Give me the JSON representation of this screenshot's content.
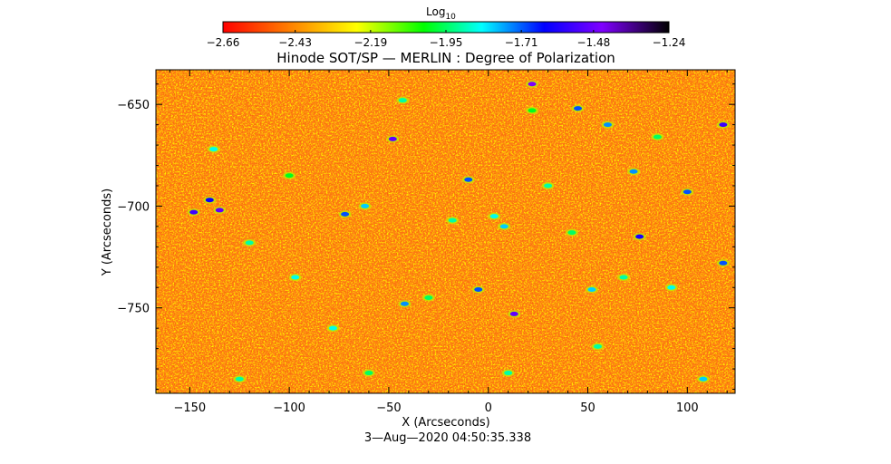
{
  "chart_data": {
    "type": "heatmap",
    "title": "Hinode SOT/SP — MERLIN : Degree of Polarization",
    "xlabel": "X (Arcseconds)",
    "ylabel": "Y (Arcseconds)",
    "timestamp": "3—Aug—2020 04:50:35.338",
    "xlim": [
      -167,
      124
    ],
    "ylim": [
      -792,
      -633
    ],
    "x_ticks": [
      -150,
      -100,
      -50,
      0,
      50,
      100
    ],
    "x_tick_labels": [
      "−150",
      "−100",
      "−50",
      "0",
      "50",
      "100"
    ],
    "y_ticks": [
      -650,
      -700,
      -750
    ],
    "y_tick_labels": [
      "−650",
      "−700",
      "−750"
    ],
    "colorbar": {
      "label_base": "Log",
      "label_sub": "10",
      "min": -2.66,
      "max": -1.24,
      "ticks": [
        -2.66,
        -2.43,
        -2.19,
        -1.95,
        -1.71,
        -1.48,
        -1.24
      ],
      "tick_labels": [
        "−2.66",
        "−2.43",
        "−2.19",
        "−1.95",
        "−1.71",
        "−1.48",
        "−1.24"
      ],
      "colormap": [
        "#ff0000",
        "#ff8000",
        "#ffff00",
        "#00ff00",
        "#00ffff",
        "#0000ff",
        "#7f00ff",
        "#000000"
      ]
    },
    "background_color": "#ff7a1a",
    "features": [
      {
        "x": -148,
        "y": -703,
        "v": -1.55
      },
      {
        "x": -140,
        "y": -697,
        "v": -1.62
      },
      {
        "x": -135,
        "y": -702,
        "v": -1.5
      },
      {
        "x": -138,
        "y": -672,
        "v": -1.85
      },
      {
        "x": -120,
        "y": -718,
        "v": -1.9
      },
      {
        "x": -100,
        "y": -685,
        "v": -2.0
      },
      {
        "x": -97,
        "y": -735,
        "v": -1.85
      },
      {
        "x": -72,
        "y": -704,
        "v": -1.7
      },
      {
        "x": -62,
        "y": -700,
        "v": -1.8
      },
      {
        "x": -48,
        "y": -667,
        "v": -1.5
      },
      {
        "x": -43,
        "y": -648,
        "v": -1.9
      },
      {
        "x": -42,
        "y": -748,
        "v": -1.75
      },
      {
        "x": -30,
        "y": -745,
        "v": -1.95
      },
      {
        "x": -18,
        "y": -707,
        "v": -1.9
      },
      {
        "x": -10,
        "y": -687,
        "v": -1.7
      },
      {
        "x": -5,
        "y": -741,
        "v": -1.7
      },
      {
        "x": 3,
        "y": -705,
        "v": -1.85
      },
      {
        "x": 8,
        "y": -710,
        "v": -1.8
      },
      {
        "x": 13,
        "y": -753,
        "v": -1.5
      },
      {
        "x": 22,
        "y": -653,
        "v": -2.0
      },
      {
        "x": 22,
        "y": -640,
        "v": -1.45
      },
      {
        "x": 30,
        "y": -690,
        "v": -1.9
      },
      {
        "x": 42,
        "y": -713,
        "v": -1.95
      },
      {
        "x": 45,
        "y": -652,
        "v": -1.7
      },
      {
        "x": 52,
        "y": -741,
        "v": -1.8
      },
      {
        "x": 55,
        "y": -769,
        "v": -1.9
      },
      {
        "x": 60,
        "y": -660,
        "v": -1.75
      },
      {
        "x": 68,
        "y": -735,
        "v": -1.9
      },
      {
        "x": 73,
        "y": -683,
        "v": -1.75
      },
      {
        "x": 76,
        "y": -715,
        "v": -1.6
      },
      {
        "x": 85,
        "y": -666,
        "v": -1.95
      },
      {
        "x": 92,
        "y": -740,
        "v": -1.85
      },
      {
        "x": 100,
        "y": -693,
        "v": -1.7
      },
      {
        "x": 108,
        "y": -785,
        "v": -1.8
      },
      {
        "x": 118,
        "y": -660,
        "v": -1.55
      },
      {
        "x": 118,
        "y": -728,
        "v": -1.7
      },
      {
        "x": -125,
        "y": -785,
        "v": -1.9
      },
      {
        "x": -60,
        "y": -782,
        "v": -1.95
      },
      {
        "x": 10,
        "y": -782,
        "v": -1.9
      },
      {
        "x": -78,
        "y": -760,
        "v": -1.85
      }
    ]
  }
}
